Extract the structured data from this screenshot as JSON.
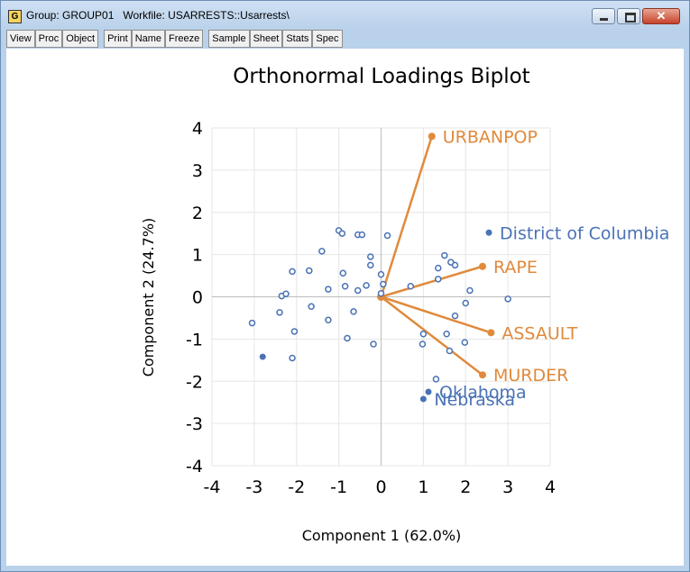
{
  "window": {
    "title": "Group: GROUP01   Workfile: USARRESTS::Usarrests\\",
    "icon_letter": "G"
  },
  "toolbar": [
    {
      "label": "View"
    },
    {
      "label": "Proc"
    },
    {
      "label": "Object"
    },
    {
      "label": "Print",
      "gap_before": true
    },
    {
      "label": "Name"
    },
    {
      "label": "Freeze"
    },
    {
      "label": "Sample",
      "gap_before": true
    },
    {
      "label": "Sheet"
    },
    {
      "label": "Stats"
    },
    {
      "label": "Spec"
    }
  ],
  "colors": {
    "obs": "#4a72b5",
    "loading": "#e08a3c",
    "grid": "#e6e6e6"
  },
  "chart_data": {
    "type": "scatter",
    "title": "Orthonormal Loadings Biplot",
    "xlabel": "Component 1 (62.0%)",
    "ylabel": "Component 2 (24.7%)",
    "xlim": [
      -4,
      4
    ],
    "ylim": [
      -4,
      4
    ],
    "xticks": [
      -4,
      -3,
      -2,
      -1,
      0,
      1,
      2,
      3,
      4
    ],
    "yticks": [
      -4,
      -3,
      -2,
      -1,
      0,
      1,
      2,
      3,
      4
    ],
    "grid": true,
    "loadings": [
      {
        "label": "URBANPOP",
        "x": 1.2,
        "y": 3.8
      },
      {
        "label": "RAPE",
        "x": 2.4,
        "y": 0.72
      },
      {
        "label": "ASSAULT",
        "x": 2.6,
        "y": -0.85
      },
      {
        "label": "MURDER",
        "x": 2.4,
        "y": -1.85
      }
    ],
    "labeled_points": [
      {
        "label": "District of Columbia",
        "x": 2.55,
        "y": 1.52
      },
      {
        "label": "Oklahoma",
        "x": 1.12,
        "y": -2.25
      },
      {
        "label": "Nebraska",
        "x": 1.0,
        "y": -2.42
      }
    ],
    "highlight_points": [
      {
        "x": -2.8,
        "y": -1.42
      }
    ],
    "points": [
      {
        "x": -1.0,
        "y": 1.57
      },
      {
        "x": -0.92,
        "y": 1.5
      },
      {
        "x": -0.55,
        "y": 1.47
      },
      {
        "x": -0.45,
        "y": 1.47
      },
      {
        "x": 0.15,
        "y": 1.45
      },
      {
        "x": -1.4,
        "y": 1.08
      },
      {
        "x": -0.25,
        "y": 0.95
      },
      {
        "x": -0.25,
        "y": 0.75
      },
      {
        "x": -2.1,
        "y": 0.6
      },
      {
        "x": -1.7,
        "y": 0.62
      },
      {
        "x": -0.9,
        "y": 0.56
      },
      {
        "x": 0.0,
        "y": 0.53
      },
      {
        "x": -0.85,
        "y": 0.25
      },
      {
        "x": -0.35,
        "y": 0.27
      },
      {
        "x": -0.55,
        "y": 0.15
      },
      {
        "x": -1.25,
        "y": 0.18
      },
      {
        "x": -2.35,
        "y": 0.02
      },
      {
        "x": -2.25,
        "y": 0.07
      },
      {
        "x": -1.65,
        "y": -0.23
      },
      {
        "x": -2.4,
        "y": -0.37
      },
      {
        "x": -3.05,
        "y": -0.62
      },
      {
        "x": -2.05,
        "y": -0.82
      },
      {
        "x": -1.25,
        "y": -0.55
      },
      {
        "x": -0.65,
        "y": -0.35
      },
      {
        "x": -0.8,
        "y": -0.98
      },
      {
        "x": -0.18,
        "y": -1.12
      },
      {
        "x": -2.1,
        "y": -1.45
      },
      {
        "x": 0.05,
        "y": 0.3
      },
      {
        "x": 0.0,
        "y": 0.08
      },
      {
        "x": 0.7,
        "y": 0.25
      },
      {
        "x": 1.5,
        "y": 0.98
      },
      {
        "x": 1.65,
        "y": 0.82
      },
      {
        "x": 1.75,
        "y": 0.75
      },
      {
        "x": 1.35,
        "y": 0.68
      },
      {
        "x": 1.35,
        "y": 0.42
      },
      {
        "x": 2.1,
        "y": 0.15
      },
      {
        "x": 2.0,
        "y": -0.15
      },
      {
        "x": 1.75,
        "y": -0.45
      },
      {
        "x": 3.0,
        "y": -0.05
      },
      {
        "x": 1.55,
        "y": -0.88
      },
      {
        "x": 1.0,
        "y": -0.88
      },
      {
        "x": 0.98,
        "y": -1.12
      },
      {
        "x": 1.98,
        "y": -1.08
      },
      {
        "x": 1.62,
        "y": -1.28
      },
      {
        "x": 1.3,
        "y": -1.95
      }
    ]
  }
}
